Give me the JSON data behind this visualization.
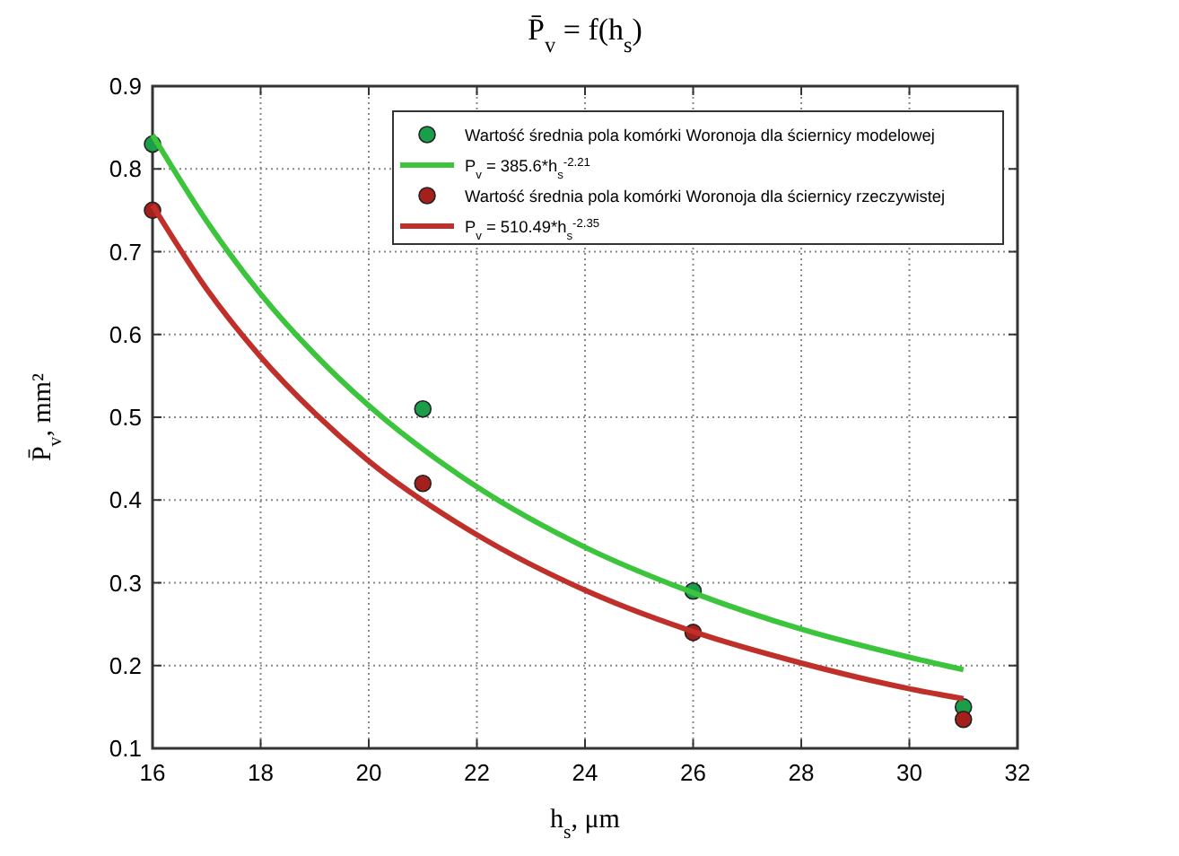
{
  "chart_data": {
    "type": "scatter",
    "title": "P̄$_{v}$ = f(h$_{s}$)",
    "xlabel": "h$_{s}$, μm",
    "ylabel": "P̄$_{v}$, mm²",
    "xlim": [
      16,
      32
    ],
    "xticks": [
      16,
      18,
      20,
      22,
      24,
      26,
      28,
      30,
      32
    ],
    "ylim": [
      0.1,
      0.9
    ],
    "yticks": [
      0.1,
      0.2,
      0.3,
      0.4,
      0.5,
      0.6,
      0.7,
      0.8,
      0.9
    ],
    "grid": true,
    "legend": "top right",
    "series": [
      {
        "name": "Wartość średnia pola komórki Woronoja  dla ściernicy modelowej",
        "color": "#1a9e4a",
        "marker": "circle",
        "x": [
          16,
          21,
          26,
          31
        ],
        "values": [
          0.83,
          0.51,
          0.29,
          0.15
        ]
      },
      {
        "type": "line",
        "name": "P$_{v}$ = 385.6*h$_{s}$$^{-2.21}$",
        "color": "#3cc43c",
        "marker": "none",
        "line_style": "solid",
        "x": [
          16,
          17,
          18,
          19,
          20,
          22,
          24,
          26,
          28,
          30,
          31
        ],
        "values": [
          0.841,
          0.737,
          0.649,
          0.576,
          0.514,
          0.416,
          0.343,
          0.288,
          0.244,
          0.21,
          0.195
        ]
      },
      {
        "name": "Wartość średnia pola komórki Woronoja  dla ściernicy rzeczywistej",
        "color": "#a3201c",
        "marker": "circle",
        "x": [
          16,
          21,
          26,
          31
        ],
        "values": [
          0.75,
          0.42,
          0.24,
          0.135
        ]
      },
      {
        "type": "line",
        "name": "P$_{v}$ = 510.49*h$_{s}$$^{-2.35}$",
        "color": "#c0302a",
        "marker": "none",
        "line_style": "solid",
        "x": [
          16,
          17,
          18,
          19,
          20,
          22,
          24,
          26,
          28,
          30,
          31
        ],
        "values": [
          0.756,
          0.655,
          0.573,
          0.505,
          0.447,
          0.358,
          0.291,
          0.241,
          0.203,
          0.172,
          0.16
        ]
      }
    ]
  }
}
